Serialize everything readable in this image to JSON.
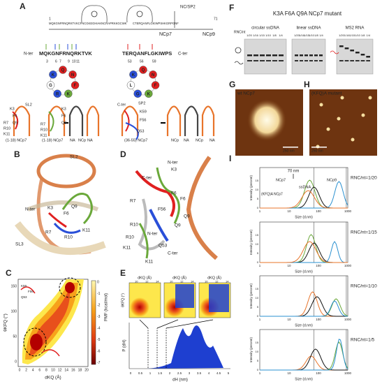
{
  "panels": [
    "A",
    "B",
    "C",
    "D",
    "E",
    "F",
    "G",
    "H",
    "I"
  ],
  "panel_A": {
    "top": [
      "NC/SP2",
      "NCp7",
      "NCp9",
      "1",
      "71"
    ],
    "seq_top_left": "MQKGNFRNQRKTVKCFNCGKEGHIAKNCRAPRKKGCWK",
    "seq_top_right": "CTERQANFLGKIWPSHKGRPGNF",
    "n_ter": "N-ter",
    "c_ter": "C-ter",
    "seq_left": "MQKGNFRNQRKTVK",
    "seq_right": "TERQANFLGKIWPS",
    "nums_left": [
      "3",
      "6",
      "7",
      "9",
      "10",
      "11"
    ],
    "nums_right": [
      "53",
      "56",
      "59"
    ],
    "wheel_left": [
      "Q",
      "N",
      "F",
      "K",
      "R",
      "G",
      "K"
    ],
    "wheel_right": [
      "Q",
      "N",
      "F",
      "K",
      "G",
      "L",
      "K"
    ],
    "hairpin_left": [
      "SL2",
      "K3",
      "F6",
      "Q9",
      "R7",
      "R10",
      "K11",
      "(1-18) NCp7",
      "K3",
      "F6",
      "Q9",
      "R7",
      "R10",
      "K11",
      "(1-18) NCp7",
      "NA",
      "NCp",
      "NA"
    ],
    "hairpin_right": [
      "C-ter",
      "SP2",
      "K59",
      "F56",
      "Q53",
      "(36-55) NCp7",
      "NCp",
      "NA",
      "NCp",
      "NA"
    ]
  },
  "panel_B": [
    "SL2",
    "N-ter",
    "K3",
    "F6",
    "Q9",
    "R7",
    "R10",
    "K11",
    "SL3"
  ],
  "panel_C": {
    "y_label": "θKFQ (°)",
    "x_label": "dKQ (Å)",
    "colorbar_label": "PMF (kcal/mol)",
    "colorbar_ticks": [
      "0",
      "-1",
      "-2",
      "-3",
      "-4",
      "-5",
      "-6",
      "-7"
    ],
    "y_ticks": [
      "150",
      "100",
      "50",
      "0"
    ],
    "x_ticks": [
      "0",
      "2",
      "4",
      "6",
      "8",
      "10",
      "12",
      "14",
      "16",
      "18",
      "20"
    ],
    "inset_labels": [
      "K59",
      "F56",
      "Q53"
    ]
  },
  "panel_D": [
    "C-ter",
    "N-ter",
    "K3",
    "F6",
    "F6",
    "R7",
    "F56",
    "Q9",
    "Q9",
    "R10",
    "R10",
    "N-ter",
    "Q53",
    "K11",
    "K11",
    "C-ter"
  ],
  "panel_E": {
    "inset_x_label": "dKQ (Å)",
    "inset_y_label": "θKFQ (°)",
    "inset_x_ticks": [
      "10",
      "12",
      "14"
    ],
    "y_label": "P (dH)",
    "x_label": "dH (nm)",
    "x_ticks": [
      "0",
      "0.5",
      "1",
      "1.5",
      "2",
      "2.5",
      "3",
      "3.5",
      "4",
      "4.5",
      "5"
    ]
  },
  "panel_F": {
    "title": "K3A F6A Q9A NCp7 mutant",
    "gels": [
      "circular ssDNA",
      "linear ssDNA",
      "MS2 RNA"
    ],
    "ratio_label": "RNC/nt",
    "ratios": [
      "1/20",
      "1/16",
      "1/15",
      "1/10",
      "1/8",
      "1/4"
    ]
  },
  "panel_G": {
    "label": "wt NCp7",
    "scale": "250 nm"
  },
  "panel_H": {
    "label": "(KFQ)A mutant",
    "scale": "250 nm"
  },
  "panel_I": {
    "annotation": "70 nm",
    "legend": [
      "NCp7",
      "ssDNA",
      "NCp9",
      "(KFQ)A NCp7"
    ],
    "plots": [
      "RNC/nt=1/20",
      "RNC/nt=1/15",
      "RNC/nt=1/10",
      "RNC/nt=1/5"
    ],
    "y_label": "Intensity (percent)",
    "x_label": "Size (d.nm)",
    "x_ticks": [
      "1",
      "10",
      "100",
      "1000"
    ],
    "y_ticks": [
      "0",
      "5",
      "10",
      "15"
    ]
  }
}
